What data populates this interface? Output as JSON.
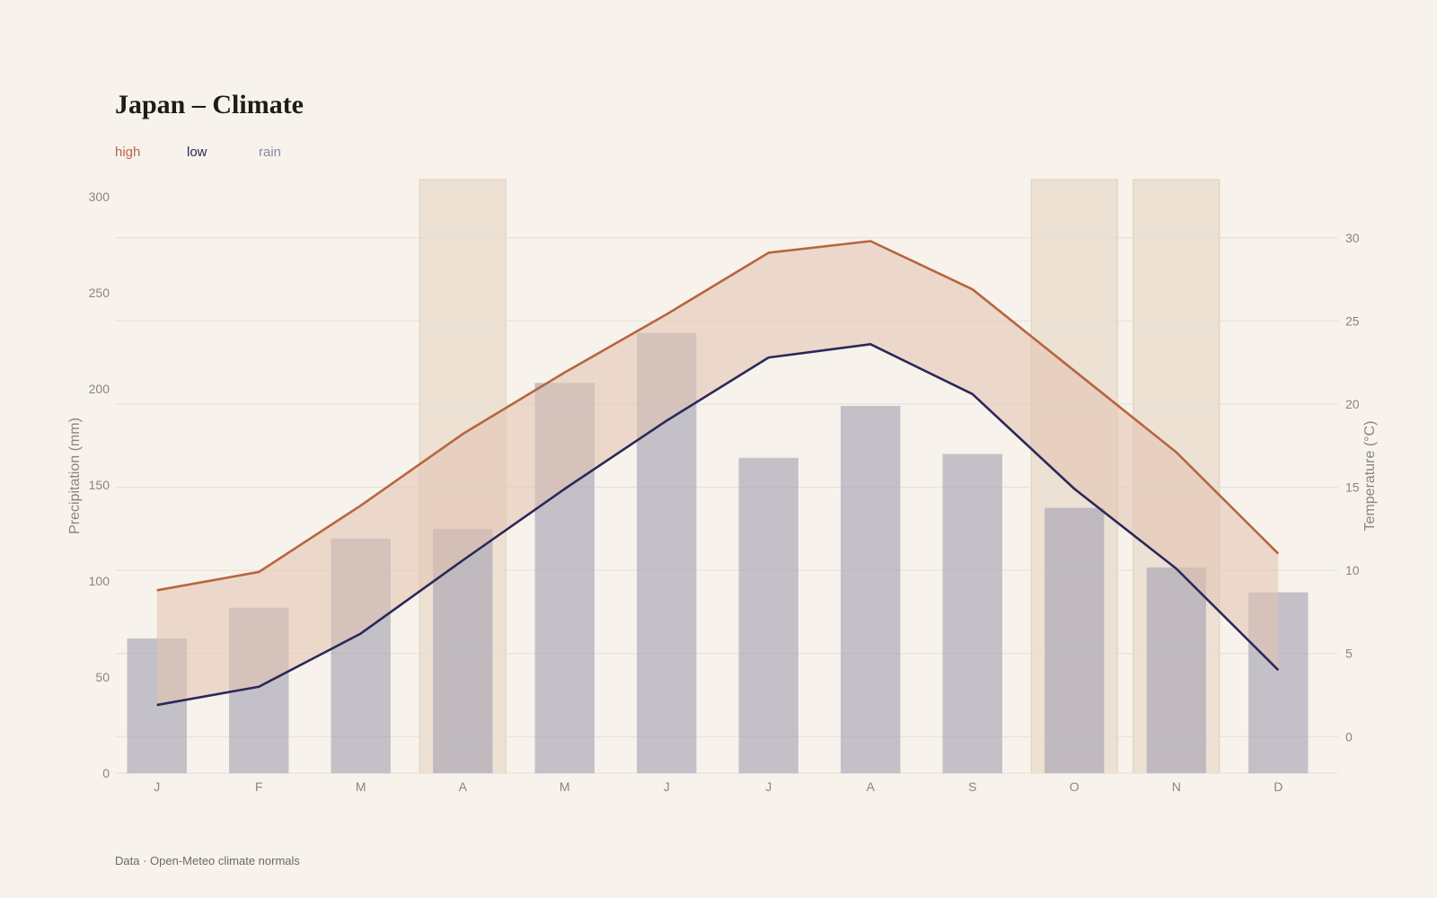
{
  "title": "Japan – Climate",
  "legend": [
    {
      "label": "high",
      "color": "#b8653f"
    },
    {
      "label": "low",
      "color": "#2b2859"
    },
    {
      "label": "rain",
      "color": "#8c8aa3"
    }
  ],
  "source": "Data · Open-Meteo climate normals",
  "colors": {
    "background": "#f7f2ec",
    "grid": "#e6ded4",
    "band": "#e3c3b0",
    "rain_bar": "#a9a5b6",
    "highlight": "#e7dac7"
  },
  "chart_data": {
    "type": "bar+line",
    "categories": [
      "J",
      "F",
      "M",
      "A",
      "M",
      "J",
      "J",
      "A",
      "S",
      "O",
      "N",
      "D"
    ],
    "series": [
      {
        "name": "rain",
        "type": "bar",
        "axis": "left",
        "values": [
          70,
          86,
          122,
          127,
          203,
          229,
          164,
          191,
          166,
          138,
          107,
          94
        ]
      },
      {
        "name": "high",
        "type": "line",
        "axis": "right",
        "values": [
          8.8,
          9.9,
          13.9,
          18.2,
          21.9,
          25.4,
          29.1,
          29.8,
          26.9,
          22.0,
          17.1,
          11.0
        ]
      },
      {
        "name": "low",
        "type": "line",
        "axis": "right",
        "values": [
          1.9,
          3.0,
          6.2,
          10.6,
          14.9,
          19.0,
          22.8,
          23.6,
          20.6,
          14.9,
          10.1,
          4.0
        ]
      }
    ],
    "highlight_months": [
      3,
      9,
      10
    ],
    "left_axis": {
      "label": "Precipitation (mm)",
      "ticks": [
        0,
        50,
        100,
        150,
        200,
        250,
        300
      ],
      "ylim": [
        0,
        300
      ]
    },
    "right_axis": {
      "label": "Temperature (°C)",
      "ticks": [
        0,
        5,
        10,
        15,
        20,
        25,
        30
      ],
      "ylim": [
        -2.2,
        33.5
      ]
    },
    "grid": true,
    "legend_position": "top-left"
  }
}
